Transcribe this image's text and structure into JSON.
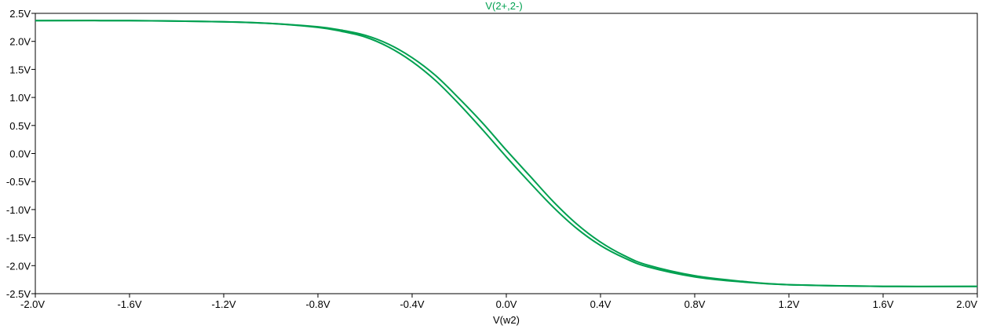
{
  "chart_data": {
    "type": "line",
    "title": "V(2+,2-)",
    "xlabel": "V(w2)",
    "ylabel": "",
    "xlim": [
      -2.0,
      2.0
    ],
    "ylim": [
      -2.5,
      2.5
    ],
    "grid": false,
    "x_ticks": [
      -2.0,
      -1.6,
      -1.2,
      -0.8,
      -0.4,
      0.0,
      0.4,
      0.8,
      1.2,
      1.6,
      2.0
    ],
    "x_tick_labels": [
      "-2.0V",
      "-1.6V",
      "-1.2V",
      "-0.8V",
      "-0.4V",
      "0.0V",
      "0.4V",
      "0.8V",
      "1.2V",
      "1.6V",
      "2.0V"
    ],
    "y_ticks": [
      2.5,
      2.0,
      1.5,
      1.0,
      0.5,
      0.0,
      -0.5,
      -1.0,
      -1.5,
      -2.0,
      -2.5
    ],
    "y_tick_labels": [
      "2.5V",
      "2.0V",
      "1.5V",
      "1.0V",
      "0.5V",
      "0.0V",
      "-0.5V",
      "-1.0V",
      "-1.5V",
      "-2.0V",
      "-2.5V"
    ],
    "colors": {
      "trace": "#00a050",
      "frame": "#000000",
      "background": "#ffffff"
    },
    "series": [
      {
        "x": [
          -2.0,
          -1.6,
          -1.2,
          -1.0,
          -0.8,
          -0.7,
          -0.6,
          -0.5,
          -0.4,
          -0.3,
          -0.2,
          -0.1,
          0.0,
          0.1,
          0.2,
          0.3,
          0.4,
          0.5,
          0.6,
          0.8,
          1.0,
          1.2,
          1.6,
          2.0
        ],
        "values": [
          2.37,
          2.37,
          2.35,
          2.32,
          2.25,
          2.18,
          2.08,
          1.9,
          1.64,
          1.3,
          0.88,
          0.42,
          -0.06,
          -0.52,
          -0.96,
          -1.34,
          -1.64,
          -1.86,
          -2.02,
          -2.2,
          -2.29,
          -2.34,
          -2.37,
          -2.37
        ]
      },
      {
        "x": [
          -2.0,
          -1.6,
          -1.2,
          -1.0,
          -0.8,
          -0.7,
          -0.6,
          -0.5,
          -0.4,
          -0.3,
          -0.2,
          -0.1,
          0.0,
          0.1,
          0.2,
          0.3,
          0.4,
          0.5,
          0.6,
          0.8,
          1.0,
          1.2,
          1.6,
          2.0
        ],
        "values": [
          2.37,
          2.37,
          2.35,
          2.32,
          2.26,
          2.2,
          2.11,
          1.95,
          1.71,
          1.39,
          0.98,
          0.54,
          0.06,
          -0.4,
          -0.86,
          -1.26,
          -1.58,
          -1.82,
          -1.99,
          -2.18,
          -2.28,
          -2.34,
          -2.37,
          -2.37
        ]
      }
    ]
  }
}
